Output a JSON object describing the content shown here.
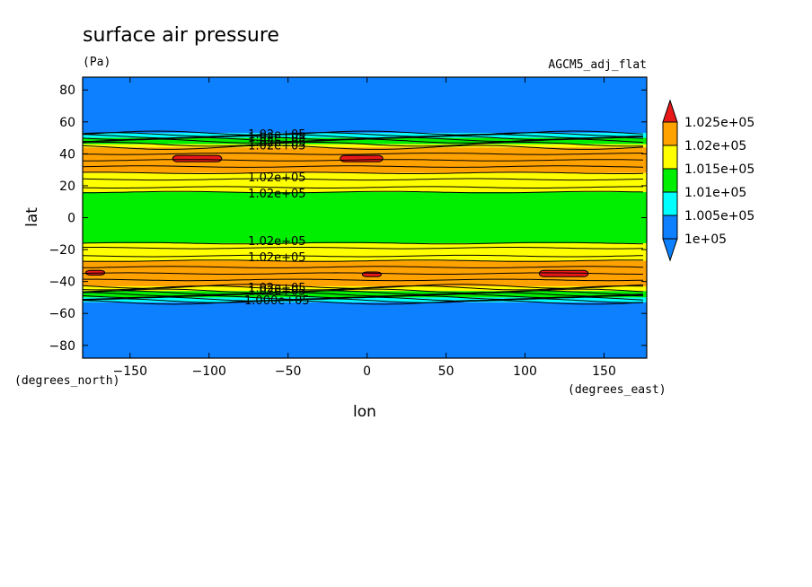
{
  "chart_data": {
    "type": "heatmap",
    "title": "surface air pressure",
    "units_label": "(Pa)",
    "model_label": "AGCM5_adj_flat",
    "xlabel": "lon",
    "ylabel": "lat",
    "x_units": "(degrees_east)",
    "y_units": "(degrees_north)",
    "xlim": [
      -180,
      177
    ],
    "ylim": [
      -88,
      88
    ],
    "xticks": [
      -150,
      -100,
      -50,
      0,
      50,
      100,
      150
    ],
    "yticks": [
      80,
      60,
      40,
      20,
      0,
      -20,
      -40,
      -60,
      -80
    ],
    "xtick_labels": [
      "−150",
      "−100",
      "−50",
      "0",
      "50",
      "100",
      "150"
    ],
    "ytick_labels": [
      "80",
      "60",
      "40",
      "20",
      "0",
      "−20",
      "−40",
      "−60",
      "−80"
    ],
    "levels": [
      {
        "label": "1.025e+05",
        "color": "#e81818"
      },
      {
        "label": "1.02e+05",
        "color": "#ffa200"
      },
      {
        "label": "1.015e+05",
        "color": "#ffff00"
      },
      {
        "label": "1.01e+05",
        "color": "#00ee00"
      },
      {
        "label": "1.005e+05",
        "color": "#00ffff"
      },
      {
        "label": "1e+05",
        "color": "#0c80ff"
      }
    ],
    "bands": [
      {
        "lat_from": 88,
        "lat_to": 53,
        "color": "#0c80ff"
      },
      {
        "lat_from": 53,
        "lat_to": 50,
        "color": "#00ffff"
      },
      {
        "lat_from": 50,
        "lat_to": 46,
        "color": "#00ee00"
      },
      {
        "lat_from": 46,
        "lat_to": 44,
        "color": "#ffff00"
      },
      {
        "lat_from": 44,
        "lat_to": 28,
        "color": "#ffa200"
      },
      {
        "lat_from": 28,
        "lat_to": 16,
        "color": "#ffff00"
      },
      {
        "lat_from": 16,
        "lat_to": -16,
        "color": "#00ee00"
      },
      {
        "lat_from": -16,
        "lat_to": -27,
        "color": "#ffff00"
      },
      {
        "lat_from": -27,
        "lat_to": -43,
        "color": "#ffa200"
      },
      {
        "lat_from": -43,
        "lat_to": -46,
        "color": "#ffff00"
      },
      {
        "lat_from": -46,
        "lat_to": -50,
        "color": "#00ee00"
      },
      {
        "lat_from": -50,
        "lat_to": -53,
        "color": "#00ffff"
      },
      {
        "lat_from": -53,
        "lat_to": -88,
        "color": "#0c80ff"
      }
    ],
    "contour_lats": [
      53,
      52,
      51,
      50,
      49,
      48,
      46,
      44,
      40,
      36,
      32,
      28,
      24,
      19,
      16,
      -16,
      -19,
      -24,
      -27,
      -31,
      -35,
      -39,
      -43,
      -44,
      -46,
      -47,
      -48,
      -49,
      -50,
      -51,
      -52,
      -53
    ],
    "maxima": [
      {
        "lon_from": -123,
        "lon_to": -92,
        "lat_from": 39,
        "lat_to": 35
      },
      {
        "lon_from": -17,
        "lon_to": 10,
        "lat_from": 39,
        "lat_to": 35
      },
      {
        "lon_from": -178,
        "lon_to": -166,
        "lat_from": -33,
        "lat_to": -36
      },
      {
        "lon_from": -3,
        "lon_to": 9,
        "lat_from": -34,
        "lat_to": -37
      },
      {
        "lon_from": 109,
        "lon_to": 140,
        "lat_from": -33,
        "lat_to": -37
      }
    ],
    "contour_labels": [
      {
        "text": "1.02e+05",
        "lon": -57,
        "lat": 25
      },
      {
        "text": "1.02e+05",
        "lon": -57,
        "lat": 15
      },
      {
        "text": "1.02e+05",
        "lon": -57,
        "lat": -15
      },
      {
        "text": "1.02e+05",
        "lon": -57,
        "lat": -25
      },
      {
        "text": "1.02e+05",
        "lon": -57,
        "lat": 52
      },
      {
        "text": "1.02e+05",
        "lon": -57,
        "lat": 50
      },
      {
        "text": "1.02e+05",
        "lon": -57,
        "lat": 47
      },
      {
        "text": "1.02e+05",
        "lon": -57,
        "lat": 45
      },
      {
        "text": "1.02e+05",
        "lon": -57,
        "lat": -44
      },
      {
        "text": "1.02e+05",
        "lon": -57,
        "lat": -46
      },
      {
        "text": "1.000e+05",
        "lon": -57,
        "lat": -52
      }
    ]
  }
}
